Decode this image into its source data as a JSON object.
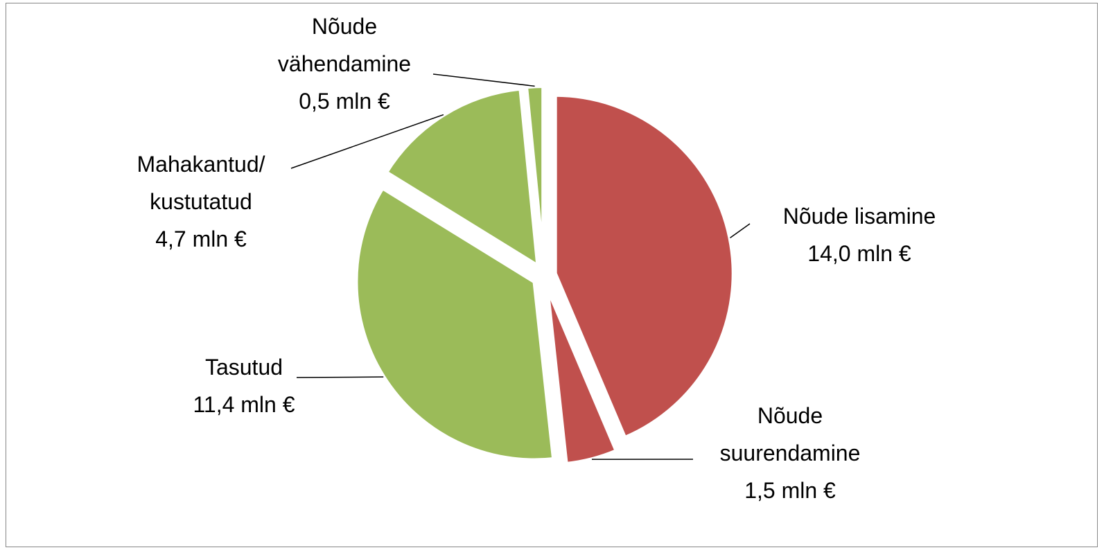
{
  "chart_data": {
    "type": "pie",
    "categories": [
      "Nõude lisamine",
      "Nõude suurendamine",
      "Tasutud",
      "Mahakantud/ kustutatud",
      "Nõude vähendamine"
    ],
    "values": [
      14.0,
      1.5,
      11.4,
      4.7,
      0.5
    ],
    "value_labels": [
      "14,0 mln €",
      "1,5 mln €",
      "11,4 mln €",
      "4,7 mln €",
      "0,5 mln €"
    ],
    "colors": [
      "#c0504d",
      "#c0504d",
      "#9bbb59",
      "#9bbb59",
      "#9bbb59"
    ]
  }
}
